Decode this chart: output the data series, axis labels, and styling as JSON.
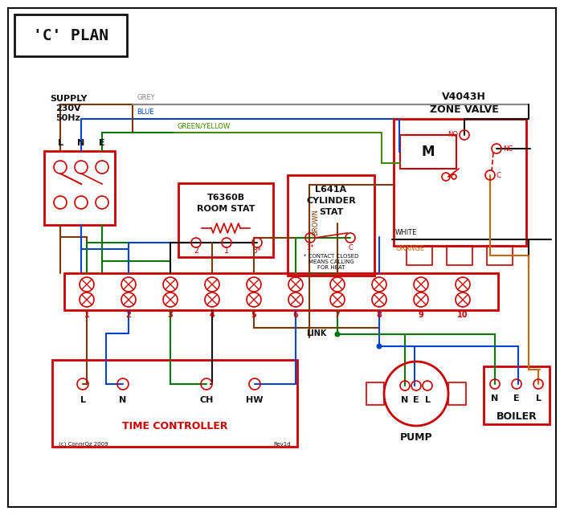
{
  "bg": "#ffffff",
  "red": "#cc0000",
  "blue": "#0044cc",
  "green": "#007700",
  "brown": "#7b3800",
  "grey": "#888888",
  "orange": "#cc6600",
  "black": "#111111",
  "gy": "#448800",
  "title": "'C' PLAN",
  "supply_text": "SUPPLY\n230V\n50Hz",
  "room_stat_title": "T6360B\nROOM STAT",
  "cyl_stat_title": "L641A\nCYLINDER\nSTAT",
  "zv_title1": "V4043H",
  "zv_title2": "ZONE VALVE",
  "tc_title": "TIME CONTROLLER",
  "pump_label": "PUMP",
  "boiler_label": "BOILER",
  "link_label": "LINK",
  "contact_note": "* CONTACT CLOSED\nMEANS CALLING\nFOR HEAT",
  "copyright": "(c) ConnrQz 2009",
  "rev": "Rev1d"
}
